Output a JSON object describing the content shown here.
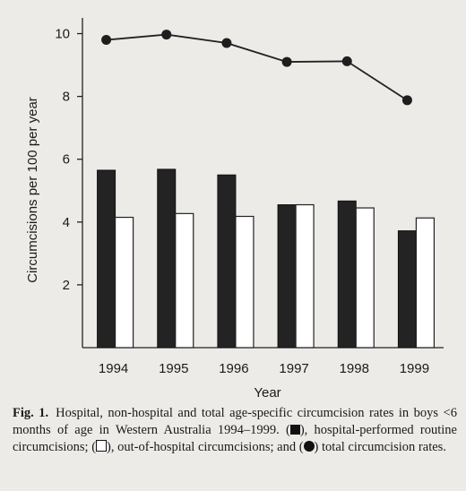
{
  "chart_data": {
    "type": "bar",
    "categories": [
      "1994",
      "1995",
      "1996",
      "1997",
      "1998",
      "1999"
    ],
    "series": [
      {
        "kind": "bar",
        "fill": "black",
        "values": [
          5.65,
          5.68,
          5.5,
          4.55,
          4.67,
          3.72
        ]
      },
      {
        "kind": "bar",
        "fill": "white",
        "values": [
          4.15,
          4.27,
          4.18,
          4.55,
          4.45,
          4.13
        ]
      },
      {
        "kind": "line",
        "marker": "filled-circle",
        "values": [
          9.8,
          9.97,
          9.7,
          9.1,
          9.12,
          7.88
        ]
      }
    ],
    "xlabel": "Year",
    "ylabel": "Circumcisions per 100 per year",
    "ylim": [
      0,
      10.5
    ],
    "yticks": [
      2,
      4,
      6,
      8,
      10
    ],
    "grid": false,
    "colors": {
      "hospital": "#232323",
      "out_of_hospital": "#ffffff",
      "total": "#1e1e1e"
    }
  },
  "caption": {
    "label": "Fig. 1.",
    "text": "Hospital, non-hospital and total age-specific circumcision rates in boys <6 months of age in Western Australia 1994–1999.",
    "legend_hospital": "hospital-performed routine circumcisions;",
    "legend_out": "out-of-hospital circumcisions; and",
    "legend_total": "total circumcision rates."
  }
}
